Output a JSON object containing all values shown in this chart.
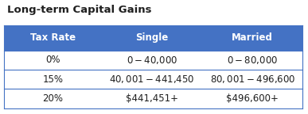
{
  "title": "Long-term Capital Gains",
  "header": [
    "Tax Rate",
    "Single",
    "Married"
  ],
  "rows": [
    [
      "0%",
      "$0 - $40,000",
      "$0 - $80,000"
    ],
    [
      "15%",
      "$40,001 - $441,450",
      "$80,001 - $496,600"
    ],
    [
      "20%",
      "$441,451+",
      "$496,600+"
    ]
  ],
  "header_bg": "#4472C4",
  "header_text_color": "#FFFFFF",
  "row_bg": "#FFFFFF",
  "row_text_color": "#1F1F1F",
  "title_color": "#1F1F1F",
  "border_color": "#4472C4",
  "title_fontsize": 9.5,
  "header_fontsize": 8.5,
  "row_fontsize": 8.5,
  "fig_bg": "#FFFFFF"
}
